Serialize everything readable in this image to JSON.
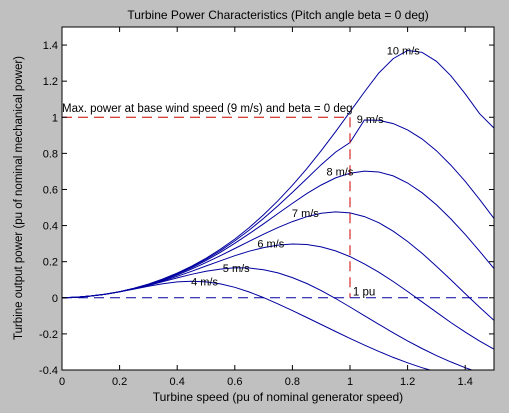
{
  "colors": {
    "figure_background": "#c0c0c0",
    "axes_background": "#ffffff",
    "curve": "#0000a0",
    "max_power_marker": "#cc0000",
    "zero_power_line": "#0000a0"
  },
  "chart_data": {
    "type": "line",
    "title": "Turbine Power Characteristics (Pitch angle beta = 0 deg)",
    "xlabel": "Turbine speed (pu of nominal generator speed)",
    "ylabel": "Turbine output power (pu of nominal mechanical power)",
    "xlim": [
      0,
      1.5
    ],
    "ylim": [
      -0.4,
      1.5
    ],
    "x_ticks": [
      0,
      0.2,
      0.4,
      0.6,
      0.8,
      1,
      1.2,
      1.4
    ],
    "x_tick_labels": [
      "0",
      "0.2",
      "0.4",
      "0.6",
      "0.8",
      "1",
      "1.2",
      "1.4"
    ],
    "y_ticks": [
      -0.4,
      -0.2,
      0,
      0.2,
      0.4,
      0.6,
      0.8,
      1,
      1.2,
      1.4
    ],
    "y_tick_labels": [
      "-0.4",
      "-0.2",
      "0",
      "0.2",
      "0.4",
      "0.6",
      "0.8",
      "1",
      "1.2",
      "1.4"
    ],
    "grid": false,
    "series": [
      {
        "name": "4 m/s",
        "label": "4 m/s",
        "label_at": [
          0.495,
          0.09
        ],
        "x": [
          0,
          0.05,
          0.1,
          0.15,
          0.2,
          0.25,
          0.3,
          0.35,
          0.4,
          0.45,
          0.5,
          0.55,
          0.6,
          0.65,
          0.7,
          0.75,
          0.8,
          0.85,
          0.9,
          0.95,
          1.0,
          1.05,
          1.1,
          1.15,
          1.2,
          1.25,
          1.3,
          1.35,
          1.4,
          1.45,
          1.5
        ],
        "y": [
          0,
          0.003,
          0.01,
          0.02,
          0.033,
          0.048,
          0.064,
          0.078,
          0.088,
          0.092,
          0.088,
          0.077,
          0.058,
          0.032,
          0.001,
          -0.034,
          -0.071,
          -0.109,
          -0.148,
          -0.187,
          -0.225,
          -0.262,
          -0.297,
          -0.33,
          -0.36,
          -0.387,
          -0.41,
          -0.43,
          -0.447,
          -0.461,
          -0.471
        ]
      },
      {
        "name": "5 m/s",
        "label": "5 m/s",
        "label_at": [
          0.605,
          0.165
        ],
        "x": [
          0,
          0.05,
          0.1,
          0.15,
          0.2,
          0.25,
          0.3,
          0.35,
          0.4,
          0.45,
          0.5,
          0.55,
          0.6,
          0.65,
          0.7,
          0.75,
          0.8,
          0.85,
          0.9,
          0.95,
          1.0,
          1.05,
          1.1,
          1.15,
          1.2,
          1.25,
          1.3,
          1.35,
          1.4,
          1.45,
          1.5
        ],
        "y": [
          0,
          0.003,
          0.01,
          0.02,
          0.033,
          0.049,
          0.068,
          0.089,
          0.11,
          0.13,
          0.147,
          0.159,
          0.166,
          0.165,
          0.155,
          0.138,
          0.112,
          0.079,
          0.04,
          -0.004,
          -0.051,
          -0.099,
          -0.147,
          -0.194,
          -0.239,
          -0.281,
          -0.32,
          -0.355,
          -0.387,
          -0.415,
          -0.44
        ]
      },
      {
        "name": "6 m/s",
        "label": "6 m/s",
        "label_at": [
          0.725,
          0.3
        ],
        "x": [
          0,
          0.05,
          0.1,
          0.15,
          0.2,
          0.25,
          0.3,
          0.35,
          0.4,
          0.45,
          0.5,
          0.55,
          0.6,
          0.65,
          0.7,
          0.75,
          0.8,
          0.85,
          0.9,
          0.95,
          1.0,
          1.05,
          1.1,
          1.15,
          1.2,
          1.25,
          1.3,
          1.35,
          1.4,
          1.45,
          1.5
        ],
        "y": [
          0,
          0.003,
          0.01,
          0.02,
          0.033,
          0.05,
          0.07,
          0.093,
          0.119,
          0.147,
          0.176,
          0.205,
          0.233,
          0.258,
          0.278,
          0.292,
          0.298,
          0.295,
          0.282,
          0.26,
          0.228,
          0.188,
          0.142,
          0.09,
          0.035,
          -0.022,
          -0.08,
          -0.137,
          -0.19,
          -0.24,
          -0.285
        ]
      },
      {
        "name": "7 m/s",
        "label": "7 m/s",
        "label_at": [
          0.845,
          0.47
        ],
        "x": [
          0,
          0.05,
          0.1,
          0.15,
          0.2,
          0.25,
          0.3,
          0.35,
          0.4,
          0.45,
          0.5,
          0.55,
          0.6,
          0.65,
          0.7,
          0.75,
          0.8,
          0.85,
          0.9,
          0.95,
          1.0,
          1.05,
          1.1,
          1.15,
          1.2,
          1.25,
          1.3,
          1.35,
          1.4,
          1.45,
          1.5
        ],
        "y": [
          0,
          0.003,
          0.01,
          0.02,
          0.034,
          0.051,
          0.072,
          0.097,
          0.126,
          0.159,
          0.195,
          0.233,
          0.273,
          0.313,
          0.352,
          0.389,
          0.422,
          0.449,
          0.468,
          0.476,
          0.47,
          0.45,
          0.416,
          0.369,
          0.312,
          0.247,
          0.175,
          0.1,
          0.023,
          -0.052,
          -0.125
        ]
      },
      {
        "name": "8 m/s",
        "label": "8 m/s",
        "label_at": [
          0.965,
          0.7
        ],
        "x": [
          0,
          0.05,
          0.1,
          0.15,
          0.2,
          0.25,
          0.3,
          0.35,
          0.4,
          0.45,
          0.5,
          0.55,
          0.6,
          0.65,
          0.7,
          0.75,
          0.8,
          0.85,
          0.9,
          0.95,
          1.0,
          1.05,
          1.1,
          1.15,
          1.2,
          1.25,
          1.3,
          1.35,
          1.4,
          1.45,
          1.5
        ],
        "y": [
          0,
          0.003,
          0.01,
          0.02,
          0.034,
          0.052,
          0.074,
          0.1,
          0.131,
          0.166,
          0.206,
          0.252,
          0.302,
          0.355,
          0.41,
          0.467,
          0.523,
          0.577,
          0.625,
          0.664,
          0.69,
          0.702,
          0.697,
          0.675,
          0.636,
          0.582,
          0.515,
          0.437,
          0.351,
          0.258,
          0.162
        ]
      },
      {
        "name": "9 m/s",
        "label": "9 m/s",
        "label_at": [
          1.07,
          0.99
        ],
        "x": [
          0,
          0.05,
          0.1,
          0.15,
          0.2,
          0.25,
          0.3,
          0.35,
          0.4,
          0.45,
          0.5,
          0.55,
          0.6,
          0.65,
          0.7,
          0.75,
          0.8,
          0.85,
          0.9,
          0.95,
          1.0,
          1.05,
          1.1,
          1.15,
          1.2,
          1.25,
          1.3,
          1.35,
          1.4,
          1.45,
          1.5
        ],
        "y": [
          0,
          0.003,
          0.01,
          0.02,
          0.034,
          0.052,
          0.075,
          0.102,
          0.134,
          0.171,
          0.213,
          0.261,
          0.315,
          0.375,
          0.44,
          0.51,
          0.584,
          0.66,
          0.737,
          0.807,
          0.86,
          0.985,
          0.983,
          0.965,
          0.93,
          0.88,
          0.815,
          0.735,
          0.645,
          0.545,
          0.44
        ]
      },
      {
        "name": "10 m/s",
        "label": "10 m/s",
        "label_at": [
          1.185,
          1.37
        ],
        "x": [
          0,
          0.05,
          0.1,
          0.15,
          0.2,
          0.25,
          0.3,
          0.35,
          0.4,
          0.45,
          0.5,
          0.55,
          0.6,
          0.65,
          0.7,
          0.75,
          0.8,
          0.85,
          0.9,
          0.95,
          1.0,
          1.05,
          1.1,
          1.15,
          1.2,
          1.25,
          1.3,
          1.35,
          1.4,
          1.45,
          1.5
        ],
        "y": [
          0,
          0.003,
          0.01,
          0.02,
          0.034,
          0.053,
          0.076,
          0.104,
          0.137,
          0.175,
          0.219,
          0.269,
          0.325,
          0.389,
          0.46,
          0.538,
          0.623,
          0.715,
          0.815,
          0.92,
          1.03,
          1.14,
          1.245,
          1.325,
          1.37,
          1.36,
          1.31,
          1.23,
          1.13,
          1.02,
          0.94
        ]
      }
    ],
    "annotations": [
      {
        "text": "Max. power at base wind speed (9 m/s) and beta = 0 deg",
        "at": [
          0.0,
          1.05
        ]
      },
      {
        "text": "1 pu",
        "at": [
          1.01,
          0.035
        ]
      }
    ],
    "reference_lines": {
      "max_power_marker": {
        "x": [
          0,
          1,
          1
        ],
        "y": [
          1,
          1,
          0
        ],
        "style": "dashed"
      },
      "zero_power_line": {
        "x": [
          0,
          1.5
        ],
        "y": [
          0,
          0
        ],
        "style": "dashed"
      }
    }
  }
}
